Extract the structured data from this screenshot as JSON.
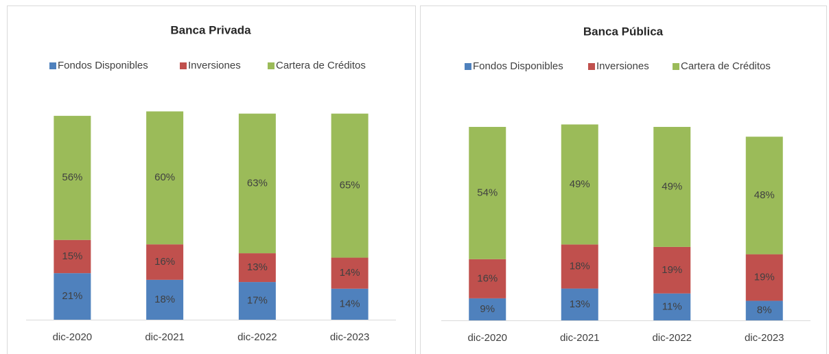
{
  "chart_data": [
    {
      "type": "bar",
      "stacked": true,
      "title": "Banca Privada",
      "categories": [
        "dic-2020",
        "dic-2021",
        "dic-2022",
        "dic-2023"
      ],
      "series": [
        {
          "name": "Fondos Disponibles",
          "color": "#4f81bd",
          "values": [
            21,
            18,
            17,
            14
          ],
          "value_labels": [
            "21%",
            "18%",
            "17%",
            "14%"
          ]
        },
        {
          "name": "Inversiones",
          "color": "#c0504d",
          "values": [
            15,
            16,
            13,
            14
          ],
          "value_labels": [
            "15%",
            "16%",
            "13%",
            "14%"
          ]
        },
        {
          "name": "Cartera de Créditos",
          "color": "#9bbb59",
          "values": [
            56,
            60,
            63,
            65
          ],
          "value_labels": [
            "56%",
            "60%",
            "63%",
            "65%"
          ]
        }
      ]
    },
    {
      "type": "bar",
      "stacked": true,
      "title": "Banca Pública",
      "categories": [
        "dic-2020",
        "dic-2021",
        "dic-2022",
        "dic-2023"
      ],
      "series": [
        {
          "name": "Fondos Disponibles",
          "color": "#4f81bd",
          "values": [
            9,
            13,
            11,
            8
          ],
          "value_labels": [
            "9%",
            "13%",
            "11%",
            "8%"
          ]
        },
        {
          "name": "Inversiones",
          "color": "#c0504d",
          "values": [
            16,
            18,
            19,
            19
          ],
          "value_labels": [
            "16%",
            "18%",
            "19%",
            "19%"
          ]
        },
        {
          "name": "Cartera de Créditos",
          "color": "#9bbb59",
          "values": [
            54,
            49,
            49,
            48
          ],
          "value_labels": [
            "54%",
            "49%",
            "49%",
            "48%"
          ]
        }
      ]
    }
  ]
}
